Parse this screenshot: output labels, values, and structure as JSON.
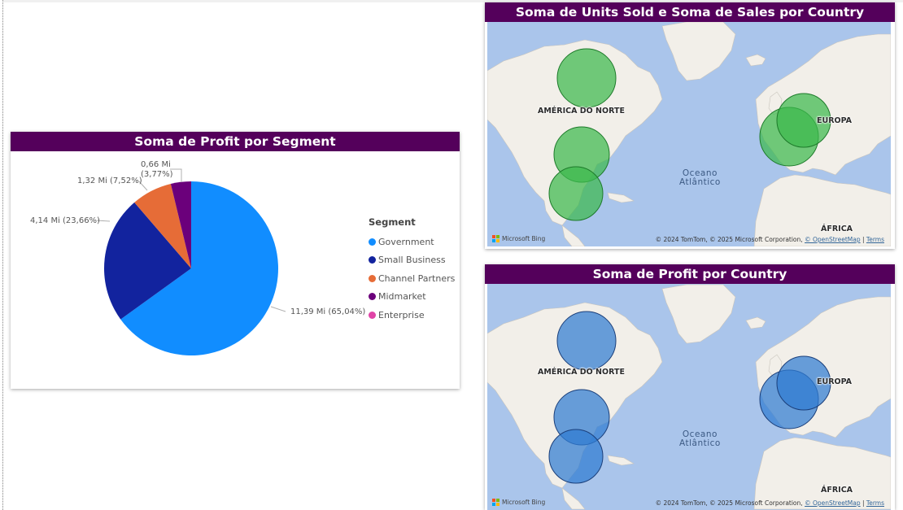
{
  "pie_visual": {
    "title": "Soma de Profit por Segment",
    "legend_title": "Segment",
    "labels": [
      {
        "text": "11,39 Mi (65,04%)"
      },
      {
        "text": "4,14 Mi (23,66%)"
      },
      {
        "text": "1,32 Mi (7,52%)"
      },
      {
        "text": "0,66 Mi"
      },
      {
        "text": "(3,77%)"
      }
    ]
  },
  "chart_data": {
    "type": "pie",
    "title": "Soma de Profit por Segment",
    "legend_title": "Segment",
    "categories": [
      "Government",
      "Small Business",
      "Channel Partners",
      "Midmarket",
      "Enterprise"
    ],
    "values": [
      11.39,
      4.14,
      1.32,
      0.66,
      0.0
    ],
    "percentages": [
      65.04,
      23.66,
      7.52,
      3.77,
      0.0
    ],
    "unit": "Mi",
    "colors": [
      "#118dff",
      "#12239e",
      "#e66c37",
      "#6b007b",
      "#e044a7"
    ],
    "legend_position": "right"
  },
  "map1": {
    "title": "Soma de Units Sold e Soma de Sales por Country",
    "bubble_color": "#3cb84c",
    "labels": {
      "north_america": "AMÉRICA DO NORTE",
      "europe": "EUROPA",
      "africa": "ÁFRICA",
      "ocean_line1": "Oceano",
      "ocean_line2": "Atlântico"
    }
  },
  "map2": {
    "title": "Soma de Profit por Country",
    "bubble_color": "#2f7bd1",
    "labels": {
      "north_america": "AMÉRICA DO NORTE",
      "europe": "EUROPA",
      "africa": "ÁFRICA",
      "ocean_line1": "Oceano",
      "ocean_line2": "Atlântico"
    }
  },
  "map_footer": {
    "bing": "Microsoft Bing",
    "copyright": "© 2024 TomTom, © 2025 Microsoft Corporation,",
    "osm_link": "© OpenStreetMap",
    "terms_link": "Terms"
  }
}
